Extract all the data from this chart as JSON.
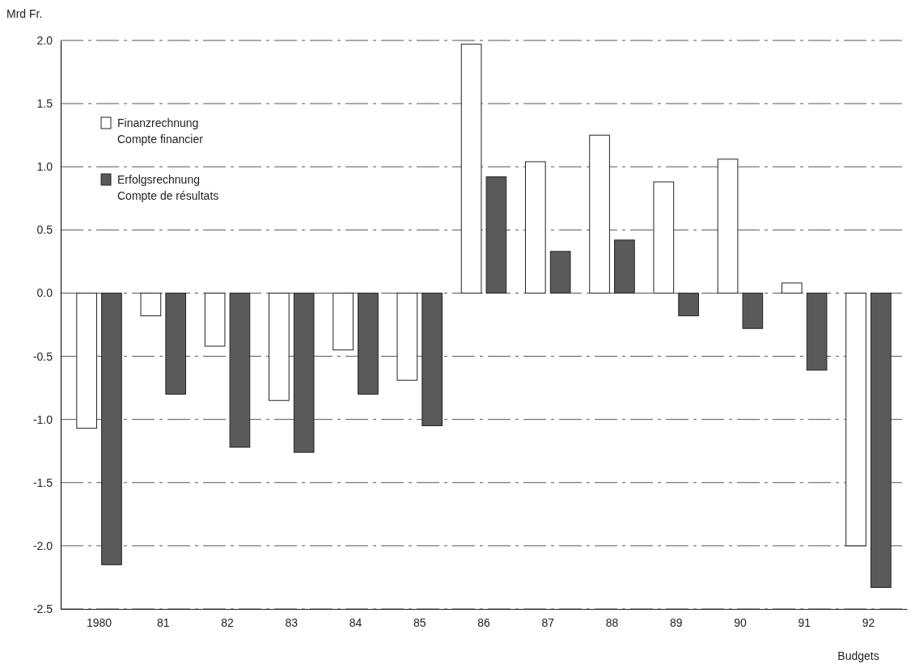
{
  "chart_data": {
    "type": "bar",
    "ylabel": "Mrd Fr.",
    "categories": [
      "1980",
      "81",
      "82",
      "83",
      "84",
      "85",
      "86",
      "87",
      "88",
      "89",
      "90",
      "91",
      "92"
    ],
    "series": [
      {
        "name": "Finanzrechnung\nCompte financier",
        "color": "#ffffff",
        "values": [
          -1.07,
          -0.18,
          -0.42,
          -0.85,
          -0.45,
          -0.69,
          1.97,
          1.04,
          1.25,
          0.88,
          1.06,
          0.08,
          -2.0
        ]
      },
      {
        "name": "Erfolgsrechnung\nCompte de résultats",
        "color": "#5a5a5a",
        "values": [
          -2.15,
          -0.8,
          -1.22,
          -1.26,
          -0.8,
          -1.05,
          0.92,
          0.33,
          0.42,
          -0.18,
          -0.28,
          -0.61,
          -2.33
        ]
      }
    ],
    "ylim": [
      -2.5,
      2.0
    ],
    "yticks": [
      {
        "value": -2.5,
        "label": "-2.5"
      },
      {
        "value": -2,
        "label": "-2.0"
      },
      {
        "value": -1.5,
        "label": "-1.5"
      },
      {
        "value": -1,
        "label": "-1.0"
      },
      {
        "value": -0.5,
        "label": "-0.5"
      },
      {
        "value": 0,
        "label": "0.0"
      },
      {
        "value": 0.5,
        "label": "0.5"
      },
      {
        "value": 1,
        "label": "1.0"
      },
      {
        "value": 1.5,
        "label": "1.5"
      },
      {
        "value": 2,
        "label": "2.0"
      }
    ],
    "grid": "y",
    "legend": "top left",
    "annotations": [
      "Budgets"
    ]
  }
}
